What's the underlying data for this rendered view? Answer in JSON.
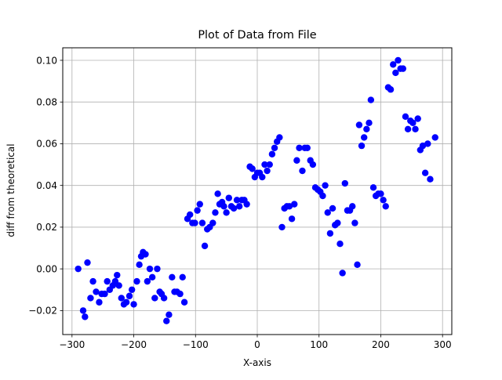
{
  "chart_data": {
    "type": "scatter",
    "title": "Plot of Data from File",
    "xlabel": "X-axis",
    "ylabel": "diff from theoretical",
    "xlim": [
      -315,
      315
    ],
    "ylim": [
      -0.0315,
      0.106
    ],
    "xticks": [
      -300,
      -200,
      -100,
      0,
      100,
      200,
      300
    ],
    "xtick_labels": [
      "−300",
      "−200",
      "−100",
      "0",
      "100",
      "200",
      "300"
    ],
    "yticks": [
      -0.02,
      0.0,
      0.02,
      0.04,
      0.06,
      0.08,
      0.1
    ],
    "ytick_labels": [
      "−0.02",
      "0.00",
      "0.02",
      "0.04",
      "0.06",
      "0.08",
      "0.10"
    ],
    "grid": true,
    "marker_color": "#0000ff",
    "points": [
      [
        -290,
        0.0
      ],
      [
        -282,
        -0.02
      ],
      [
        -279,
        -0.023
      ],
      [
        -275,
        0.003
      ],
      [
        -270,
        -0.014
      ],
      [
        -266,
        -0.006
      ],
      [
        -261,
        -0.011
      ],
      [
        -256,
        -0.016
      ],
      [
        -252,
        -0.012
      ],
      [
        -247,
        -0.012
      ],
      [
        -243,
        -0.006
      ],
      [
        -239,
        -0.01
      ],
      [
        -234,
        -0.008
      ],
      [
        -230,
        -0.006
      ],
      [
        -227,
        -0.003
      ],
      [
        -224,
        -0.008
      ],
      [
        -220,
        -0.014
      ],
      [
        -216,
        -0.017
      ],
      [
        -212,
        -0.016
      ],
      [
        -207,
        -0.013
      ],
      [
        -203,
        -0.01
      ],
      [
        -200,
        -0.017
      ],
      [
        -195,
        -0.006
      ],
      [
        -191,
        0.002
      ],
      [
        -188,
        0.006
      ],
      [
        -185,
        0.008
      ],
      [
        -181,
        0.007
      ],
      [
        -178,
        -0.006
      ],
      [
        -174,
        0.0
      ],
      [
        -170,
        -0.004
      ],
      [
        -166,
        -0.014
      ],
      [
        -162,
        -0.0
      ],
      [
        -158,
        -0.011
      ],
      [
        -155,
        -0.012
      ],
      [
        -151,
        -0.014
      ],
      [
        -147,
        -0.025
      ],
      [
        -143,
        -0.022
      ],
      [
        -138,
        -0.004
      ],
      [
        -134,
        -0.011
      ],
      [
        -130,
        -0.011
      ],
      [
        -125,
        -0.012
      ],
      [
        -121,
        -0.004
      ],
      [
        -118,
        -0.016
      ],
      [
        -113,
        0.024
      ],
      [
        -109,
        0.026
      ],
      [
        -105,
        0.022
      ],
      [
        -101,
        0.022
      ],
      [
        -97,
        0.028
      ],
      [
        -93,
        0.031
      ],
      [
        -89,
        0.022
      ],
      [
        -85,
        0.011
      ],
      [
        -81,
        0.019
      ],
      [
        -77,
        0.02
      ],
      [
        -72,
        0.022
      ],
      [
        -68,
        0.027
      ],
      [
        -64,
        0.036
      ],
      [
        -61,
        0.031
      ],
      [
        -57,
        0.032
      ],
      [
        -54,
        0.03
      ],
      [
        -50,
        0.027
      ],
      [
        -46,
        0.034
      ],
      [
        -42,
        0.03
      ],
      [
        -38,
        0.029
      ],
      [
        -33,
        0.033
      ],
      [
        -29,
        0.03
      ],
      [
        -25,
        0.033
      ],
      [
        -21,
        0.033
      ],
      [
        -17,
        0.031
      ],
      [
        -12,
        0.049
      ],
      [
        -8,
        0.048
      ],
      [
        -4,
        0.044
      ],
      [
        0,
        0.046
      ],
      [
        4,
        0.046
      ],
      [
        8,
        0.044
      ],
      [
        12,
        0.05
      ],
      [
        16,
        0.047
      ],
      [
        20,
        0.05
      ],
      [
        24,
        0.055
      ],
      [
        28,
        0.058
      ],
      [
        32,
        0.061
      ],
      [
        36,
        0.063
      ],
      [
        40,
        0.02
      ],
      [
        44,
        0.029
      ],
      [
        48,
        0.03
      ],
      [
        52,
        0.03
      ],
      [
        56,
        0.024
      ],
      [
        60,
        0.031
      ],
      [
        64,
        0.052
      ],
      [
        68,
        0.058
      ],
      [
        73,
        0.047
      ],
      [
        77,
        0.058
      ],
      [
        81,
        0.058
      ],
      [
        86,
        0.052
      ],
      [
        90,
        0.05
      ],
      [
        94,
        0.039
      ],
      [
        98,
        0.038
      ],
      [
        102,
        0.037
      ],
      [
        106,
        0.035
      ],
      [
        110,
        0.04
      ],
      [
        114,
        0.027
      ],
      [
        118,
        0.017
      ],
      [
        122,
        0.029
      ],
      [
        126,
        0.021
      ],
      [
        130,
        0.022
      ],
      [
        134,
        0.012
      ],
      [
        138,
        -0.002
      ],
      [
        142,
        0.041
      ],
      [
        146,
        0.028
      ],
      [
        150,
        0.028
      ],
      [
        154,
        0.03
      ],
      [
        158,
        0.022
      ],
      [
        162,
        0.002
      ],
      [
        165,
        0.069
      ],
      [
        169,
        0.059
      ],
      [
        173,
        0.063
      ],
      [
        177,
        0.067
      ],
      [
        181,
        0.07
      ],
      [
        184,
        0.081
      ],
      [
        188,
        0.039
      ],
      [
        192,
        0.035
      ],
      [
        196,
        0.036
      ],
      [
        200,
        0.036
      ],
      [
        204,
        0.033
      ],
      [
        208,
        0.03
      ],
      [
        212,
        0.087
      ],
      [
        216,
        0.086
      ],
      [
        220,
        0.098
      ],
      [
        224,
        0.094
      ],
      [
        228,
        0.1
      ],
      [
        232,
        0.096
      ],
      [
        236,
        0.096
      ],
      [
        240,
        0.073
      ],
      [
        244,
        0.067
      ],
      [
        248,
        0.071
      ],
      [
        252,
        0.07
      ],
      [
        256,
        0.067
      ],
      [
        260,
        0.072
      ],
      [
        264,
        0.057
      ],
      [
        268,
        0.059
      ],
      [
        272,
        0.046
      ],
      [
        276,
        0.06
      ],
      [
        280,
        0.043
      ],
      [
        288,
        0.063
      ]
    ]
  }
}
